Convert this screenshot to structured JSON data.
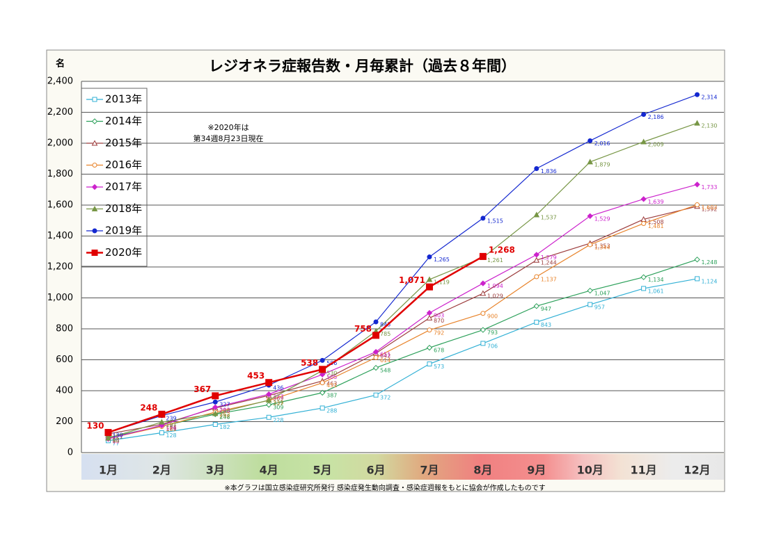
{
  "chart_data": {
    "type": "line",
    "title": "レジオネラ症報告数・月毎累計（過去８年間）",
    "y_label": "名",
    "annotation": [
      "※2020年は",
      "第34週8月23日現在"
    ],
    "footnote": "※本グラフは国立感染症研究所発行 感染症発生動向調査・感染症週報をもとに協会が作成したものです",
    "categories": [
      "1月",
      "2月",
      "3月",
      "4月",
      "5月",
      "6月",
      "7月",
      "8月",
      "9月",
      "10月",
      "11月",
      "12月"
    ],
    "ylim": [
      0,
      2400
    ],
    "yticks": [
      0,
      200,
      400,
      600,
      800,
      {
        "value": 1000,
        "label": "1,000"
      },
      {
        "value": 1200,
        "label": "1,200"
      },
      {
        "value": 1400,
        "label": "1,400"
      },
      {
        "value": 1600,
        "label": "1,600"
      },
      {
        "value": 1800,
        "label": "1,800"
      },
      {
        "value": 2000,
        "label": "2,000"
      },
      {
        "value": 2200,
        "label": "2,200"
      },
      {
        "value": 2400,
        "label": "2,400"
      }
    ],
    "grid": true,
    "legend": "upper left",
    "series": [
      {
        "name": "2013年",
        "color": "#31b0d5",
        "marker": "square-open",
        "values": [
          77,
          128,
          182,
          228,
          288,
          372,
          573,
          706,
          843,
          957,
          1061,
          1124
        ],
        "value_labels": [
          "77",
          "128",
          "182",
          "228",
          "288",
          "372",
          "573",
          "706",
          "843",
          "957",
          "1,061",
          "1,124"
        ]
      },
      {
        "name": "2014年",
        "color": "#2ca05a",
        "marker": "diamond-open",
        "values": [
          98,
          171,
          248,
          309,
          387,
          548,
          678,
          793,
          947,
          1047,
          1134,
          1248
        ],
        "value_labels": [
          "98",
          "171",
          "248",
          "309",
          "387",
          "548",
          "678",
          "793",
          "947",
          "1,047",
          "1,134",
          "1,248"
        ]
      },
      {
        "name": "2015年",
        "color": "#9c3c3c",
        "marker": "triangle-open",
        "values": [
          121,
          183,
          288,
          369,
          463,
          642,
          870,
          1029,
          1244,
          1353,
          1508,
          1592
        ],
        "value_labels": [
          "121",
          "183",
          "288",
          "369",
          "463",
          "642",
          "870",
          "1,029",
          "1,244",
          "1,353",
          "1,508",
          "1,592"
        ]
      },
      {
        "name": "2016年",
        "color": "#e8832a",
        "marker": "circle-open",
        "values": [
          90,
          169,
          262,
          337,
          451,
          614,
          792,
          900,
          1137,
          1344,
          1481,
          1602
        ],
        "value_labels": [
          "90",
          "169",
          "262",
          "337",
          "451",
          "614",
          "792",
          "900",
          "1,137",
          "1,344",
          "1,481",
          "1,602"
        ]
      },
      {
        "name": "2017年",
        "color": "#cc22cc",
        "marker": "diamond",
        "values": [
          89,
          176,
          293,
          377,
          505,
          651,
          903,
          1094,
          1279,
          1529,
          1639,
          1733
        ],
        "value_labels": [
          "89",
          "176",
          "293",
          "377",
          "505",
          "651",
          "903",
          "1,094",
          "1,279",
          "1,529",
          "1,639",
          "1,733"
        ]
      },
      {
        "name": "2018年",
        "color": "#779645",
        "marker": "triangle",
        "values": [
          94,
          197,
          252,
          339,
          530,
          785,
          1119,
          1261,
          1537,
          1879,
          2009,
          2130
        ],
        "value_labels": [
          "94",
          "197",
          "252",
          "339",
          "530",
          "785",
          "1,119",
          "1,261",
          "1,537",
          "1,879",
          "2,009",
          "2,130"
        ]
      },
      {
        "name": "2019年",
        "color": "#1428d0",
        "marker": "circle",
        "values": [
          130,
          239,
          327,
          436,
          596,
          845,
          1265,
          1515,
          1836,
          2016,
          2186,
          2314
        ],
        "value_labels": [
          "130",
          "239",
          "327",
          "436",
          "596",
          "845",
          "1,265",
          "1,515",
          "1,836",
          "2,016",
          "2,186",
          "2,314"
        ]
      },
      {
        "name": "2020年",
        "color": "#e00000",
        "marker": "square",
        "values": [
          130,
          248,
          367,
          453,
          538,
          758,
          1071,
          1268,
          null,
          null,
          null,
          null
        ],
        "value_labels": [
          "130",
          "248",
          "367",
          "453",
          "538",
          "758",
          "1,071",
          "1,268",
          null,
          null,
          null,
          null
        ]
      }
    ]
  }
}
